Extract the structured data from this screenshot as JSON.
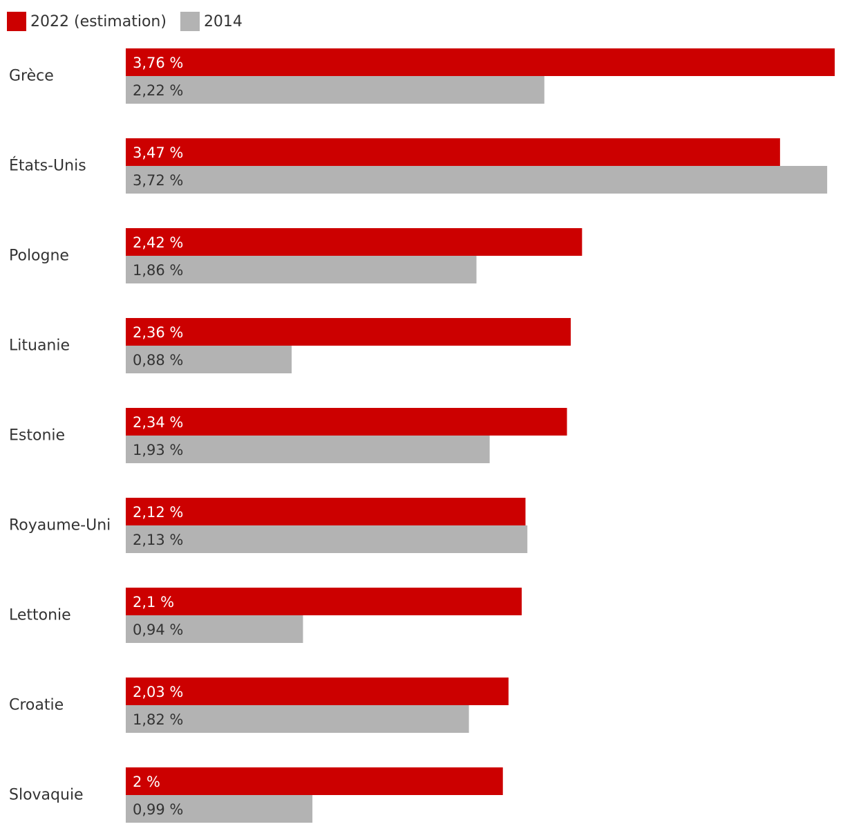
{
  "chart_data": {
    "type": "bar",
    "orientation": "horizontal",
    "categories": [
      "Grèce",
      "États-Unis",
      "Pologne",
      "Lituanie",
      "Estonie",
      "Royaume-Uni",
      "Lettonie",
      "Croatie",
      "Slovaquie"
    ],
    "series": [
      {
        "name": "2022 (estimation)",
        "color": "#cc0000",
        "label_color": "#ffffff",
        "values": [
          3.76,
          3.47,
          2.42,
          2.36,
          2.34,
          2.12,
          2.1,
          2.03,
          2
        ],
        "labels": [
          "3,76 %",
          "3,47 %",
          "2,42 %",
          "2,36 %",
          "2,34 %",
          "2,12 %",
          "2,1 %",
          "2,03 %",
          "2 %"
        ]
      },
      {
        "name": "2014",
        "color": "#b3b3b3",
        "label_color": "#333333",
        "values": [
          2.22,
          3.72,
          1.86,
          0.88,
          1.93,
          2.13,
          0.94,
          1.82,
          0.99
        ],
        "labels": [
          "2,22 %",
          "3,72 %",
          "1,86 %",
          "0,88 %",
          "1,93 %",
          "2,13 %",
          "0,94 %",
          "1,82 %",
          "0,99 %"
        ]
      }
    ],
    "xlim": [
      0,
      3.76
    ],
    "legend": "top-left",
    "grid": false,
    "title": "",
    "xlabel": "",
    "ylabel": ""
  }
}
